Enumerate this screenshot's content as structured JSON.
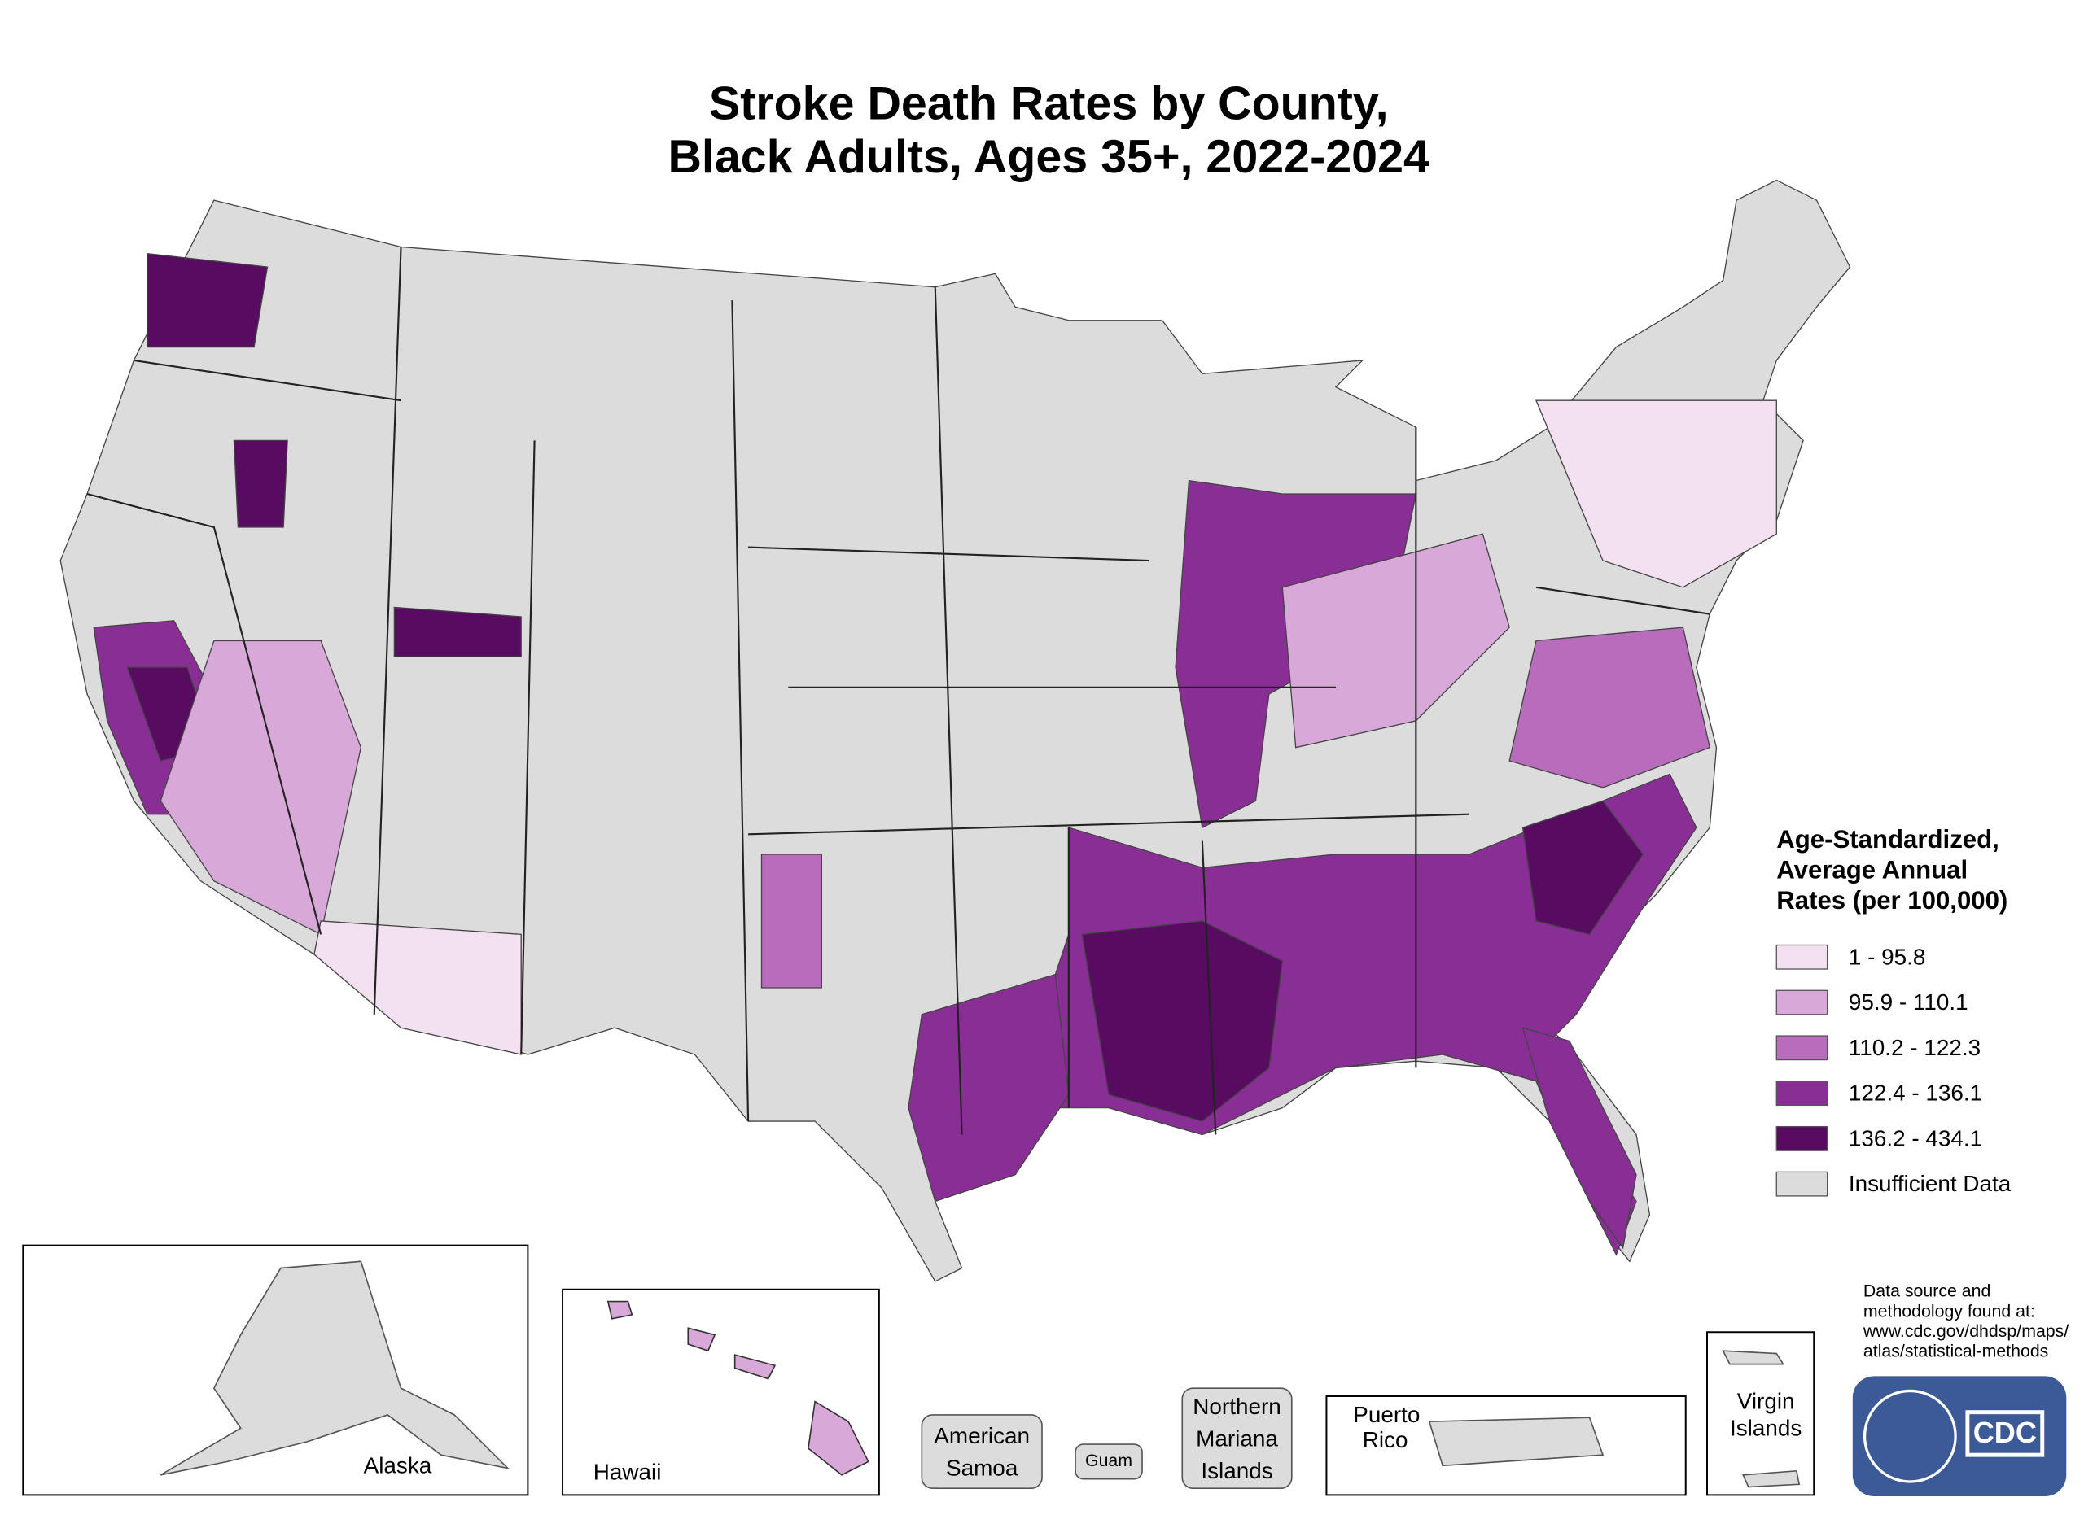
{
  "header": {
    "title": [
      "Stroke Death Rates by County,",
      "Black Adults, Ages 35+, 2022-2024"
    ]
  },
  "legend": {
    "title": [
      "Age-Standardized,",
      "Average Annual",
      "Rates (per 100,000)"
    ],
    "items": [
      {
        "label": "1 - 95.8",
        "color": "#f3e1f1"
      },
      {
        "label": "95.9 - 110.1",
        "color": "#d8a9d8"
      },
      {
        "label": "110.2 - 122.3",
        "color": "#b86cbc"
      },
      {
        "label": "122.4 - 136.1",
        "color": "#892e95"
      },
      {
        "label": "136.2 - 434.1",
        "color": "#570b61"
      },
      {
        "label": "Insufficient Data",
        "color": "#dcdcdc"
      }
    ]
  },
  "insets": {
    "alaska": "Alaska",
    "hawaii": "Hawaii",
    "american_samoa": [
      "American",
      "Samoa"
    ],
    "guam": "Guam",
    "northern_mariana": [
      "Northern",
      "Mariana",
      "Islands"
    ],
    "puerto_rico": [
      "Puerto",
      "Rico"
    ],
    "virgin_islands": [
      "Virgin",
      "Islands"
    ]
  },
  "source_note": [
    "Data source and",
    "methodology found at:",
    "www.cdc.gov/dhdsp/maps/",
    "atlas/statistical-methods"
  ],
  "logo": {
    "text": "CDC"
  }
}
